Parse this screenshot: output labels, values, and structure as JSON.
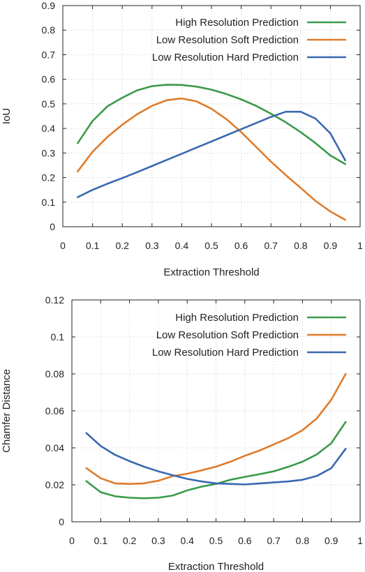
{
  "chart_data": [
    {
      "type": "line",
      "title": "",
      "xlabel": "Extraction Threshold",
      "ylabel": "IoU",
      "xlim": [
        0,
        1
      ],
      "ylim": [
        0,
        0.9
      ],
      "xticks": [
        "0",
        "0.1",
        "0.2",
        "0.3",
        "0.4",
        "0.5",
        "0.6",
        "0.7",
        "0.8",
        "0.9",
        "1"
      ],
      "yticks": [
        "0",
        "0.1",
        "0.2",
        "0.3",
        "0.4",
        "0.5",
        "0.6",
        "0.7",
        "0.8",
        "0.9"
      ],
      "grid": true,
      "legend_position": "top-right",
      "x": [
        0.05,
        0.1,
        0.15,
        0.2,
        0.25,
        0.3,
        0.35,
        0.4,
        0.45,
        0.5,
        0.55,
        0.6,
        0.65,
        0.7,
        0.75,
        0.8,
        0.85,
        0.9,
        0.95
      ],
      "series": [
        {
          "name": "High Resolution Prediction",
          "color": "#3a9a4a",
          "values": [
            0.34,
            0.43,
            0.49,
            0.525,
            0.555,
            0.572,
            0.578,
            0.577,
            0.57,
            0.558,
            0.54,
            0.518,
            0.492,
            0.46,
            0.425,
            0.385,
            0.34,
            0.29,
            0.255
          ]
        },
        {
          "name": "Low Resolution Soft Prediction",
          "color": "#e07b2a",
          "values": [
            0.225,
            0.305,
            0.365,
            0.415,
            0.458,
            0.492,
            0.515,
            0.522,
            0.51,
            0.48,
            0.438,
            0.385,
            0.325,
            0.265,
            0.21,
            0.158,
            0.105,
            0.062,
            0.028
          ]
        },
        {
          "name": "Low Resolution Hard Prediction",
          "color": "#3a68b0",
          "values": [
            0.12,
            0.15,
            0.175,
            0.198,
            0.222,
            0.247,
            0.272,
            0.297,
            0.322,
            0.347,
            0.372,
            0.397,
            0.422,
            0.447,
            0.468,
            0.468,
            0.44,
            0.38,
            0.27
          ]
        }
      ]
    },
    {
      "type": "line",
      "title": "",
      "xlabel": "Extraction Threshold",
      "ylabel": "Chamfer Distance",
      "xlim": [
        0,
        1
      ],
      "ylim": [
        0,
        0.12
      ],
      "xticks": [
        "0",
        "0.1",
        "0.2",
        "0.3",
        "0.4",
        "0.5",
        "0.6",
        "0.7",
        "0.8",
        "0.9",
        "1"
      ],
      "yticks": [
        "0",
        "0.02",
        "0.04",
        "0.06",
        "0.08",
        "0.1",
        "0.12"
      ],
      "grid": true,
      "legend_position": "top-right",
      "x": [
        0.05,
        0.1,
        0.15,
        0.2,
        0.25,
        0.3,
        0.35,
        0.4,
        0.45,
        0.5,
        0.55,
        0.6,
        0.65,
        0.7,
        0.75,
        0.8,
        0.85,
        0.9,
        0.95
      ],
      "series": [
        {
          "name": "High Resolution Prediction",
          "color": "#3a9a4a",
          "values": [
            0.022,
            0.016,
            0.0138,
            0.013,
            0.0127,
            0.013,
            0.0142,
            0.017,
            0.019,
            0.0205,
            0.0227,
            0.0243,
            0.0257,
            0.0273,
            0.0297,
            0.0325,
            0.0365,
            0.0425,
            0.054
          ]
        },
        {
          "name": "Low Resolution Soft Prediction",
          "color": "#e07b2a",
          "values": [
            0.029,
            0.0235,
            0.0208,
            0.0205,
            0.0208,
            0.0222,
            0.0247,
            0.026,
            0.0278,
            0.0298,
            0.0325,
            0.0357,
            0.0385,
            0.0418,
            0.0452,
            0.0495,
            0.056,
            0.066,
            0.08
          ]
        },
        {
          "name": "Low Resolution Hard Prediction",
          "color": "#3a68b0",
          "values": [
            0.048,
            0.041,
            0.0362,
            0.0328,
            0.0298,
            0.0273,
            0.0252,
            0.0232,
            0.0218,
            0.0208,
            0.0205,
            0.0202,
            0.0207,
            0.0213,
            0.0218,
            0.0227,
            0.0248,
            0.029,
            0.0395
          ]
        }
      ]
    }
  ]
}
